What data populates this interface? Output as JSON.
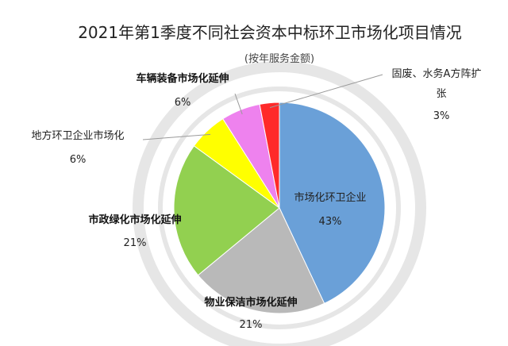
{
  "chart_data": {
    "type": "pie",
    "title": "2021年第1季度不同社会资本中标环卫市场化项目情况",
    "subtitle": "(按年服务金额)",
    "start_angle_deg": 0,
    "direction": "clockwise",
    "slices": [
      {
        "label": "市场化环卫企业",
        "value": 43,
        "value_label": "43%",
        "color": "#6aa0d8"
      },
      {
        "label": "物业保洁市场化延伸",
        "value": 21,
        "value_label": "21%",
        "color": "#b9b9b9"
      },
      {
        "label": "市政绿化市场化延伸",
        "value": 21,
        "value_label": "21%",
        "color": "#92d050"
      },
      {
        "label": "地方环卫企业市场化",
        "value": 6,
        "value_label": "6%",
        "color": "#ffff00"
      },
      {
        "label": "车辆装备市场化延伸",
        "value": 6,
        "value_label": "6%",
        "color": "#ee82ee"
      },
      {
        "label": "固废、水务A方阵扩张",
        "label_lines": [
          "固废、水务A方阵扩",
          "张"
        ],
        "value": 3,
        "value_label": "3%",
        "color": "#ff2a2a"
      }
    ]
  }
}
